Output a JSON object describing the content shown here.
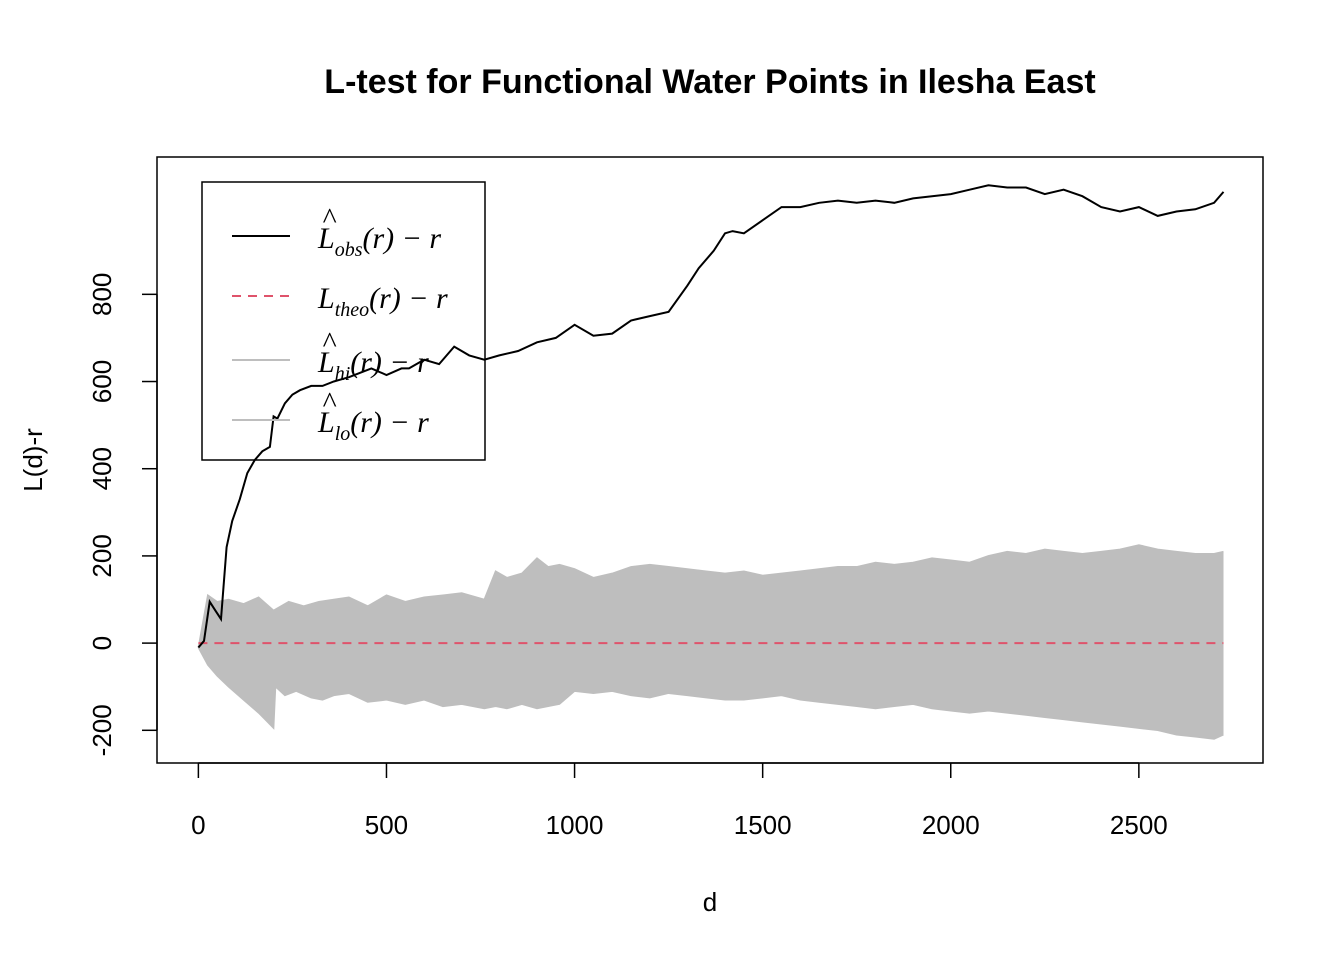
{
  "chart_data": {
    "type": "line",
    "title": "L-test for Functional Water Points in Ilesha East",
    "xlabel": "d",
    "ylabel": "L(d)-r",
    "xlim": [
      -110,
      2830
    ],
    "ylim": [
      -275,
      1115
    ],
    "x_ticks": [
      0,
      500,
      1000,
      1500,
      2000,
      2500
    ],
    "x_tick_labels": [
      "0",
      "500",
      "1000",
      "1500",
      "2000",
      "2500"
    ],
    "y_ticks": [
      -200,
      0,
      200,
      400,
      600,
      800
    ],
    "y_tick_labels": [
      "-200",
      "0",
      "200",
      "400",
      "600",
      "800"
    ],
    "grid": false,
    "legend_position": "top-left",
    "legend": [
      {
        "main": "L",
        "hat": "^",
        "sub": "obs",
        "tail": "(r) − r",
        "style": "solid",
        "color": "#000000"
      },
      {
        "main": "L",
        "hat": "",
        "sub": "theo",
        "tail": "(r) − r",
        "style": "dashed",
        "color": "#DF536B"
      },
      {
        "main": "L",
        "hat": "^",
        "sub": "hi",
        "tail": "(r) − r",
        "style": "solid",
        "color": "#BEBEBE"
      },
      {
        "main": "L",
        "hat": "^",
        "sub": "lo",
        "tail": "(r) − r",
        "style": "solid",
        "color": "#BEBEBE"
      }
    ],
    "colors": {
      "obs": "#000000",
      "theo": "#DF536B",
      "envelope": "#BEBEBE"
    },
    "series": [
      {
        "key": "obs",
        "x": [
          0,
          15,
          30,
          45,
          60,
          75,
          90,
          110,
          130,
          150,
          170,
          190,
          200,
          210,
          230,
          250,
          270,
          300,
          330,
          360,
          400,
          430,
          460,
          500,
          540,
          560,
          600,
          640,
          680,
          720,
          760,
          800,
          850,
          900,
          950,
          1000,
          1050,
          1100,
          1150,
          1200,
          1250,
          1300,
          1330,
          1370,
          1400,
          1420,
          1450,
          1500,
          1550,
          1600,
          1650,
          1700,
          1750,
          1800,
          1850,
          1900,
          1950,
          2000,
          2050,
          2100,
          2150,
          2200,
          2250,
          2300,
          2350,
          2400,
          2450,
          2500,
          2550,
          2600,
          2650,
          2700,
          2725
        ],
        "y": [
          -10,
          5,
          95,
          75,
          55,
          220,
          280,
          330,
          390,
          420,
          440,
          450,
          520,
          515,
          550,
          570,
          580,
          590,
          590,
          600,
          610,
          620,
          630,
          615,
          630,
          630,
          650,
          640,
          680,
          660,
          650,
          660,
          670,
          690,
          700,
          730,
          705,
          710,
          740,
          750,
          760,
          820,
          860,
          900,
          940,
          945,
          940,
          970,
          1000,
          1000,
          1010,
          1015,
          1010,
          1015,
          1010,
          1020,
          1025,
          1030,
          1040,
          1050,
          1045,
          1045,
          1030,
          1040,
          1025,
          1000,
          990,
          1000,
          980,
          990,
          995,
          1010,
          1035
        ]
      },
      {
        "key": "theo",
        "x": [
          0,
          2725
        ],
        "y": [
          0,
          0
        ]
      },
      {
        "key": "hi",
        "x": [
          0,
          25,
          50,
          80,
          120,
          160,
          200,
          240,
          280,
          320,
          360,
          400,
          450,
          500,
          550,
          600,
          650,
          700,
          760,
          790,
          820,
          860,
          900,
          930,
          960,
          1000,
          1050,
          1100,
          1150,
          1200,
          1250,
          1300,
          1350,
          1400,
          1450,
          1500,
          1550,
          1600,
          1650,
          1700,
          1750,
          1800,
          1850,
          1900,
          1950,
          2000,
          2050,
          2100,
          2150,
          2200,
          2250,
          2300,
          2350,
          2400,
          2450,
          2500,
          2550,
          2600,
          2650,
          2700,
          2725
        ],
        "y": [
          -10,
          110,
          95,
          100,
          90,
          105,
          75,
          95,
          85,
          95,
          100,
          105,
          85,
          110,
          95,
          105,
          110,
          115,
          100,
          165,
          150,
          160,
          195,
          175,
          180,
          170,
          150,
          160,
          175,
          180,
          175,
          170,
          165,
          160,
          165,
          155,
          160,
          165,
          170,
          175,
          175,
          185,
          180,
          185,
          195,
          190,
          185,
          200,
          210,
          205,
          215,
          210,
          205,
          210,
          215,
          225,
          215,
          210,
          205,
          205,
          210
        ]
      },
      {
        "key": "lo",
        "x": [
          0,
          25,
          50,
          80,
          120,
          160,
          200,
          205,
          230,
          260,
          300,
          330,
          360,
          400,
          450,
          500,
          550,
          600,
          650,
          700,
          760,
          790,
          820,
          860,
          900,
          930,
          960,
          1000,
          1050,
          1100,
          1150,
          1200,
          1250,
          1300,
          1350,
          1400,
          1450,
          1500,
          1550,
          1600,
          1650,
          1700,
          1750,
          1800,
          1850,
          1900,
          1950,
          2000,
          2050,
          2100,
          2150,
          2200,
          2250,
          2300,
          2350,
          2400,
          2450,
          2500,
          2550,
          2600,
          2650,
          2700,
          2725
        ],
        "y": [
          -10,
          -50,
          -75,
          -100,
          -130,
          -160,
          -195,
          -100,
          -120,
          -110,
          -125,
          -130,
          -120,
          -115,
          -135,
          -130,
          -140,
          -130,
          -145,
          -140,
          -150,
          -145,
          -150,
          -140,
          -150,
          -145,
          -140,
          -110,
          -115,
          -110,
          -120,
          -125,
          -115,
          -120,
          -125,
          -130,
          -130,
          -125,
          -120,
          -130,
          -135,
          -140,
          -145,
          -150,
          -145,
          -140,
          -150,
          -155,
          -160,
          -155,
          -160,
          -165,
          -170,
          -175,
          -180,
          -185,
          -190,
          -195,
          -200,
          -210,
          -215,
          -220,
          -210
        ]
      }
    ]
  }
}
